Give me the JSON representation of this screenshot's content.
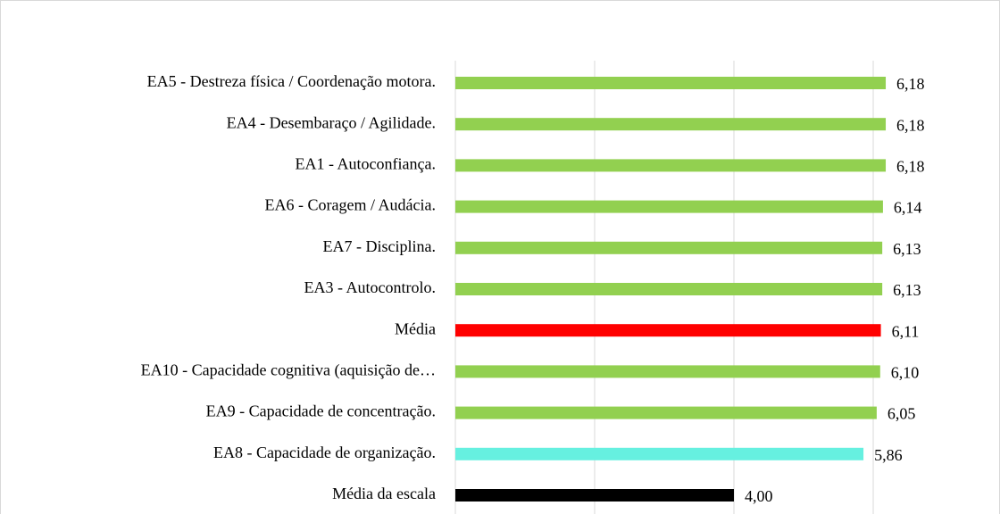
{
  "chart_data": {
    "type": "barh",
    "categories": [
      "EA5 - Destreza física / Coordenação motora.",
      "EA4 - Desembaraço / Agilidade.",
      "EA1 - Autoconfiança.",
      "EA6 - Coragem / Audácia.",
      "EA7 - Disciplina.",
      "EA3 - Autocontrolo.",
      "Média",
      "EA10 - Capacidade cognitiva (aquisição de…",
      "EA9 - Capacidade de concentração.",
      "EA8 - Capacidade de organização.",
      "Média da escala"
    ],
    "values": [
      6.18,
      6.18,
      6.18,
      6.14,
      6.13,
      6.13,
      6.11,
      6.1,
      6.05,
      5.86,
      4.0
    ],
    "value_labels": [
      "6,18",
      "6,18",
      "6,18",
      "6,14",
      "6,13",
      "6,13",
      "6,11",
      "6,10",
      "6,05",
      "5,86",
      "4,00"
    ],
    "colors": [
      "#92d050",
      "#92d050",
      "#92d050",
      "#92d050",
      "#92d050",
      "#92d050",
      "#ff0000",
      "#92d050",
      "#92d050",
      "#66f0e0",
      "#000000"
    ],
    "xlim": [
      0,
      7
    ],
    "xticks": [
      0,
      2,
      4,
      6
    ],
    "grid": true
  }
}
